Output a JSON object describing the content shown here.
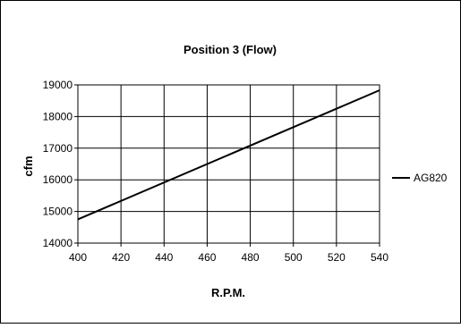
{
  "chart_data": {
    "type": "line",
    "title": "Position 3 (Flow)",
    "xlabel": "R.P.M.",
    "ylabel": "cfm",
    "xlim": [
      400,
      540
    ],
    "ylim": [
      14000,
      19000
    ],
    "xticks": [
      400,
      420,
      440,
      460,
      480,
      500,
      520,
      540
    ],
    "yticks": [
      14000,
      15000,
      16000,
      17000,
      18000,
      19000
    ],
    "grid": true,
    "legend_position": "right",
    "series": [
      {
        "name": "AG820",
        "color": "#000000",
        "x": [
          400,
          540
        ],
        "y": [
          14750,
          18830
        ]
      }
    ]
  }
}
